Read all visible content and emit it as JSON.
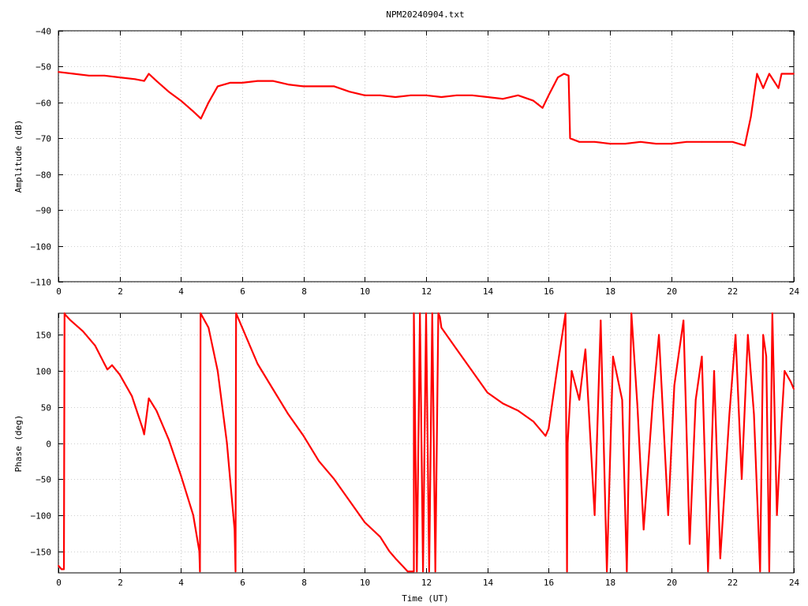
{
  "title": "NPM20240904.txt",
  "chart_data": [
    {
      "type": "line",
      "name": "amplitude-panel",
      "xlabel": "",
      "ylabel": "Amplitude (dB)",
      "xlim": [
        0,
        24
      ],
      "ylim": [
        -110,
        -40
      ],
      "xticks": [
        0,
        2,
        4,
        6,
        8,
        10,
        12,
        14,
        16,
        18,
        20,
        22,
        24
      ],
      "yticks": [
        -110,
        -100,
        -90,
        -80,
        -70,
        -60,
        -50,
        -40
      ],
      "color": "#ff0000",
      "x": [
        0,
        0.5,
        1,
        1.5,
        2,
        2.5,
        2.8,
        2.95,
        3.2,
        3.6,
        4.0,
        4.4,
        4.65,
        4.9,
        5.2,
        5.6,
        6.0,
        6.5,
        7,
        7.5,
        8,
        8.5,
        9,
        9.5,
        10,
        10.5,
        11,
        11.5,
        12,
        12.5,
        13,
        13.5,
        14,
        14.5,
        15,
        15.5,
        15.8,
        16.0,
        16.3,
        16.5,
        16.65,
        16.7,
        17,
        17.5,
        18,
        18.5,
        19,
        19.5,
        20,
        20.5,
        21,
        21.5,
        22,
        22.4,
        22.6,
        22.8,
        23.0,
        23.2,
        23.5,
        23.6,
        24
      ],
      "y": [
        -51.5,
        -52,
        -52.5,
        -52.5,
        -53,
        -53.5,
        -54,
        -52,
        -54,
        -57,
        -59.5,
        -62.5,
        -64.5,
        -60,
        -55.5,
        -54.5,
        -54.5,
        -54,
        -54,
        -55,
        -55.5,
        -55.5,
        -55.5,
        -57,
        -58,
        -58,
        -58.5,
        -58,
        -58,
        -58.5,
        -58,
        -58,
        -58.5,
        -59,
        -58,
        -59.5,
        -61.5,
        -58,
        -53,
        -52,
        -52.5,
        -70,
        -71,
        -71,
        -71.5,
        -71.5,
        -71,
        -71.5,
        -71.5,
        -71,
        -71,
        -71,
        -71,
        -72,
        -64,
        -52,
        -56,
        -52,
        -56,
        -52,
        -52
      ]
    },
    {
      "type": "line",
      "name": "phase-panel",
      "xlabel": "Time (UT)",
      "ylabel": "Phase (deg)",
      "xlim": [
        0,
        24
      ],
      "ylim": [
        -180,
        180
      ],
      "xticks": [
        0,
        2,
        4,
        6,
        8,
        10,
        12,
        14,
        16,
        18,
        20,
        22,
        24
      ],
      "yticks": [
        -150,
        -100,
        -50,
        0,
        50,
        100,
        150
      ],
      "color": "#ff0000",
      "x": [
        0,
        0.1,
        0.18,
        0.2,
        0.22,
        0.4,
        0.8,
        1.2,
        1.5,
        1.6,
        1.75,
        2.0,
        2.4,
        2.75,
        2.8,
        2.95,
        3.2,
        3.6,
        4.0,
        4.4,
        4.6,
        4.62,
        4.64,
        4.9,
        5.2,
        5.5,
        5.75,
        5.78,
        5.8,
        6.0,
        6.5,
        7.0,
        7.5,
        8.0,
        8.5,
        9.0,
        9.5,
        10.0,
        10.5,
        10.8,
        11.0,
        11.4,
        11.6,
        11.6,
        11.7,
        11.8,
        11.9,
        12.0,
        12.1,
        12.2,
        12.3,
        12.4,
        12.45,
        12.5,
        13.0,
        13.5,
        14.0,
        14.5,
        15.0,
        15.5,
        15.9,
        16.0,
        16.3,
        16.55,
        16.6,
        16.62,
        16.75,
        17.0,
        17.2,
        17.5,
        17.7,
        17.9,
        18.1,
        18.4,
        18.55,
        18.7,
        18.9,
        19.1,
        19.4,
        19.6,
        19.9,
        20.1,
        20.4,
        20.6,
        20.8,
        21.0,
        21.2,
        21.4,
        21.6,
        21.9,
        22.1,
        22.3,
        22.5,
        22.7,
        22.9,
        23.0,
        23.1,
        23.2,
        23.3,
        23.45,
        23.6,
        23.7,
        23.9,
        24.0
      ],
      "y": [
        -170,
        -175,
        -175,
        180,
        178,
        170,
        155,
        135,
        110,
        102,
        108,
        95,
        65,
        20,
        12,
        62,
        45,
        5,
        -45,
        -100,
        -150,
        -178,
        180,
        160,
        100,
        0,
        -120,
        -178,
        180,
        160,
        110,
        75,
        40,
        10,
        -25,
        -50,
        -80,
        -110,
        -130,
        -150,
        -160,
        -178,
        -178,
        180,
        -178,
        180,
        -178,
        180,
        -178,
        180,
        -178,
        180,
        175,
        160,
        130,
        100,
        70,
        55,
        45,
        30,
        10,
        20,
        110,
        180,
        -178,
        0,
        100,
        60,
        130,
        -100,
        170,
        -178,
        120,
        60,
        -178,
        180,
        50,
        -120,
        60,
        150,
        -100,
        80,
        170,
        -140,
        60,
        120,
        -178,
        100,
        -160,
        40,
        150,
        -50,
        150,
        40,
        -178,
        150,
        120,
        -178,
        180,
        -100,
        30,
        100,
        85,
        75
      ]
    }
  ]
}
